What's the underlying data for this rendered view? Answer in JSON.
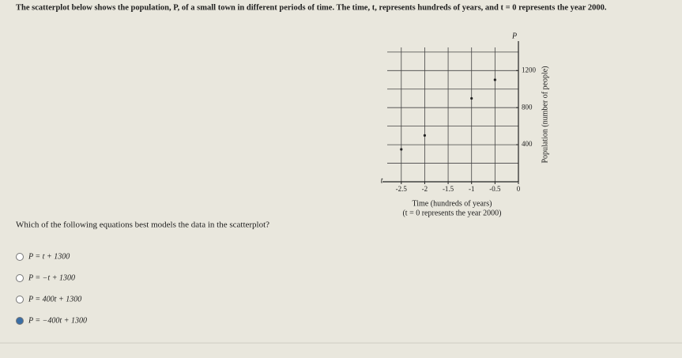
{
  "question": "The scatterplot below shows the population, P, of a small town in different periods of time. The time, t, represents hundreds of years, and t = 0 represents the year 2000.",
  "chart_data": {
    "type": "scatter",
    "x_axis_letter": "t",
    "y_axis_letter": "P",
    "x_label": "Time (hundreds of years)",
    "x_note": "(t = 0 represents the year 2000)",
    "y_label": "Population (number of people)",
    "x": [
      -2.5,
      -2,
      -1,
      -0.5
    ],
    "values": [
      350,
      500,
      900,
      1100
    ],
    "color": "#222",
    "xlim": [
      -2.8,
      0
    ],
    "ylim": [
      0,
      1450
    ],
    "xticks": [
      -2.5,
      -2,
      -1.5,
      -1,
      -0.5,
      0
    ],
    "yticks": [
      400,
      800,
      1200
    ],
    "xgrid": [
      -2.5,
      -2,
      -1.5,
      -1,
      -0.5
    ],
    "ygrid": [
      200,
      400,
      600,
      800,
      1000,
      1200,
      1400
    ],
    "grid": true
  },
  "prompt": "Which of the following equations best models the data in the scatterplot?",
  "options": [
    "P = t + 1300",
    "P = −t + 1300",
    "P = 400t + 1300",
    "P = −400t + 1300"
  ],
  "selected": 3
}
